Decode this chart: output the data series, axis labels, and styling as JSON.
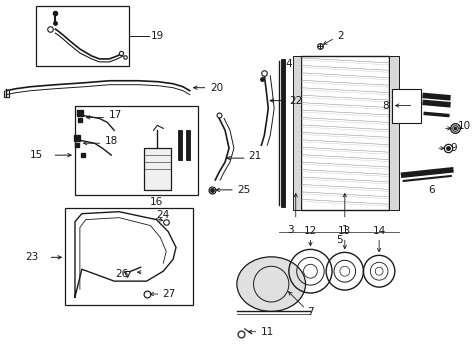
{
  "bg_color": "white",
  "lc": "#1a1a1a",
  "fig_width": 4.74,
  "fig_height": 3.48,
  "dpi": 100
}
